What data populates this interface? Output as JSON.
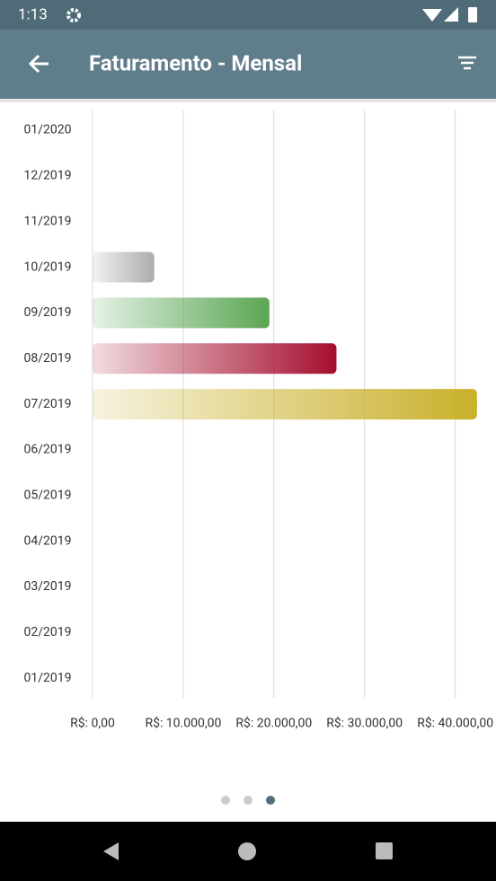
{
  "status_bar": {
    "time": "1:13"
  },
  "app_bar": {
    "title": "Faturamento - Mensal"
  },
  "chart_data": {
    "type": "bar",
    "orientation": "horizontal",
    "categories": [
      "01/2020",
      "12/2019",
      "11/2019",
      "10/2019",
      "09/2019",
      "08/2019",
      "07/2019",
      "06/2019",
      "05/2019",
      "04/2019",
      "03/2019",
      "02/2019",
      "01/2019"
    ],
    "values": [
      0,
      0,
      0,
      6800,
      19500,
      26900,
      42400,
      0,
      0,
      0,
      0,
      0,
      0
    ],
    "colors": [
      null,
      null,
      null,
      "#acacac",
      "#5aa552",
      "#a50e2e",
      "#c9b02a",
      null,
      null,
      null,
      null,
      null,
      null
    ],
    "xlim": [
      0,
      44000
    ],
    "xticks": [
      {
        "value": 0,
        "label": "R$: 0,00"
      },
      {
        "value": 10000,
        "label": "R$: 10.000,00"
      },
      {
        "value": 20000,
        "label": "R$: 20.000,00"
      },
      {
        "value": 30000,
        "label": "R$: 30.000,00"
      },
      {
        "value": 40000,
        "label": "R$: 40.000,00"
      }
    ],
    "grid": true
  }
}
